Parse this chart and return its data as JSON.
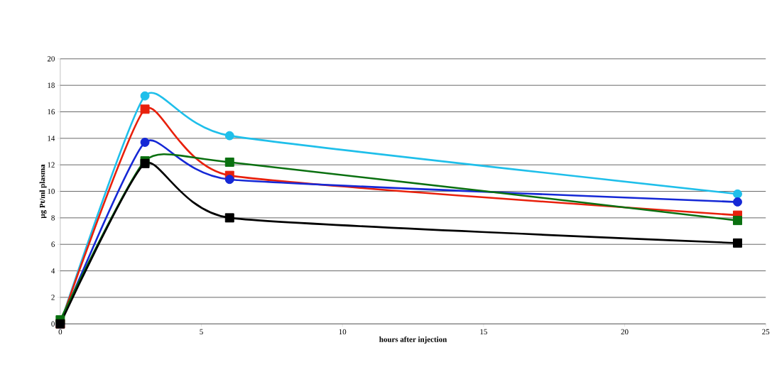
{
  "chart_data": {
    "type": "line",
    "xlabel": "hours after injection",
    "ylabel": "µg Pt/ml plasma",
    "x": [
      0,
      3,
      6,
      24
    ],
    "xlim": [
      0,
      25
    ],
    "ylim": [
      0,
      20
    ],
    "xticks": [
      0,
      5,
      10,
      15,
      20,
      25
    ],
    "yticks": [
      0,
      2,
      4,
      6,
      8,
      10,
      12,
      14,
      16,
      18,
      20
    ],
    "grid": "y",
    "series": [
      {
        "color": "#1fbfea",
        "values": [
          0,
          17.2,
          14.2,
          9.8
        ],
        "marker": "circle"
      },
      {
        "color": "#e8200c",
        "values": [
          0,
          16.2,
          11.2,
          8.2
        ],
        "marker": "square"
      },
      {
        "color": "#1528d6",
        "values": [
          0,
          13.7,
          10.9,
          9.2
        ],
        "marker": "circle"
      },
      {
        "color": "#0a7010",
        "values": [
          0.3,
          12.3,
          12.2,
          7.8
        ],
        "marker": "square"
      },
      {
        "color": "#000000",
        "values": [
          0,
          12.1,
          8.0,
          6.1
        ],
        "marker": "square"
      }
    ]
  }
}
